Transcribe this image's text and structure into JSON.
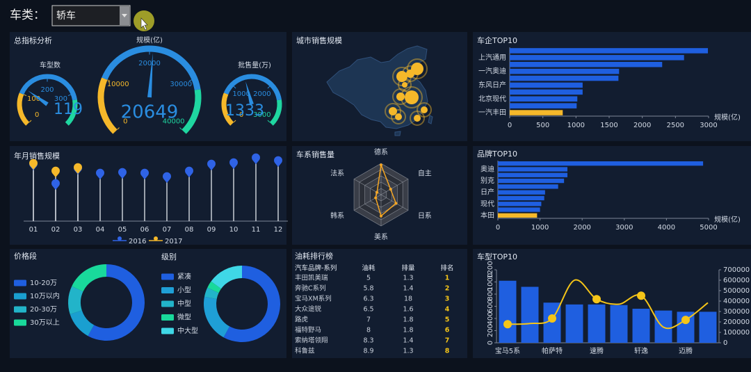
{
  "filter": {
    "label": "车类：",
    "value": "轿车"
  },
  "chart_data": [
    {
      "type": "gauge",
      "title": "总指标分析",
      "colors": [
        "#f5b82a",
        "#2a8de0",
        "#1fd6a0"
      ],
      "gauges": [
        {
          "name": "车型数",
          "value": 119,
          "lim": [
            0,
            400
          ],
          "ticks": [
            0,
            100,
            200,
            300
          ]
        },
        {
          "name": "规模(亿)",
          "value": 20649,
          "lim": [
            0,
            40000
          ],
          "ticks": [
            0,
            10000,
            20000,
            30000,
            40000
          ]
        },
        {
          "name": "批售量(万)",
          "value": 1333,
          "lim": [
            0,
            3000
          ],
          "ticks": [
            0,
            1000,
            2000,
            3000
          ]
        }
      ]
    },
    {
      "type": "map",
      "title": "城市销售规模"
    },
    {
      "type": "hbar",
      "title": "车企TOP10",
      "categories": [
        null,
        "上汽通用",
        null,
        "一汽奥迪",
        null,
        "东风日产",
        null,
        "北京现代",
        null,
        "一汽丰田"
      ],
      "values": [
        2990,
        2630,
        2300,
        1650,
        1640,
        1100,
        1100,
        1020,
        1010,
        800
      ],
      "colors": [
        "#1f5fe0",
        "#1f5fe0",
        "#1f5fe0",
        "#1f5fe0",
        "#1f5fe0",
        "#1f5fe0",
        "#1f5fe0",
        "#1f5fe0",
        "#1f5fe0",
        "#f5b82a"
      ],
      "xlim": [
        0,
        3000
      ],
      "xticks": [
        0,
        500,
        1000,
        1500,
        2000,
        2500,
        3000
      ],
      "xlabel": "规模(亿)"
    },
    {
      "type": "lollipop",
      "title": "年月销售规模",
      "categories": [
        "01",
        "02",
        "03",
        "04",
        "05",
        "06",
        "07",
        "08",
        "09",
        "10",
        "11",
        "12"
      ],
      "series": [
        {
          "name": "2016",
          "color": "#2f63e6",
          "values": [
            76,
            48,
            70,
            63,
            64,
            63,
            58,
            66,
            76,
            78,
            85,
            81
          ]
        },
        {
          "name": "2017",
          "color": "#f5b82a",
          "values": [
            77,
            66,
            71,
            null,
            null,
            null,
            null,
            null,
            null,
            null,
            null,
            null
          ]
        }
      ],
      "ylim": [
        0,
        100
      ]
    },
    {
      "type": "radar",
      "title": "车系销售量",
      "indicators": [
        "德系",
        "自主",
        "日系",
        "美系",
        "韩系",
        "法系"
      ],
      "rlim": [
        0,
        100
      ],
      "series": [
        {
          "color": "#f5a623",
          "values": [
            95,
            35,
            55,
            68,
            20,
            15
          ]
        }
      ]
    },
    {
      "type": "hbar",
      "title": "品牌TOP10",
      "categories": [
        null,
        "奥迪",
        null,
        "别克",
        null,
        "日产",
        null,
        "现代",
        null,
        "本田"
      ],
      "values": [
        4870,
        1650,
        1650,
        1570,
        1430,
        1120,
        1100,
        1030,
        1000,
        930
      ],
      "colors": [
        "#1f5fe0",
        "#1f5fe0",
        "#1f5fe0",
        "#1f5fe0",
        "#1f5fe0",
        "#1f5fe0",
        "#1f5fe0",
        "#1f5fe0",
        "#1f5fe0",
        "#f5b82a"
      ],
      "xlim": [
        0,
        5000
      ],
      "xticks": [
        0,
        1000,
        2000,
        3000,
        4000,
        5000
      ],
      "xlabel": "规模(亿)"
    },
    {
      "type": "donut",
      "title": "价格段",
      "categories": [
        "10-20万",
        "10万以内",
        "20-30万",
        "30万以上"
      ],
      "values": [
        58,
        12,
        12,
        18
      ],
      "colors": [
        "#1f5fe0",
        "#1a9fd0",
        "#22b4c9",
        "#19d99b"
      ]
    },
    {
      "type": "donut",
      "title": "级别",
      "categories": [
        "紧凑",
        "小型",
        "中型",
        "微型",
        "中大型"
      ],
      "values": [
        58,
        20,
        4,
        3,
        15
      ],
      "colors": [
        "#1f5fe0",
        "#1f9fd6",
        "#22b4c9",
        "#19d99b",
        "#3fd7e6"
      ]
    },
    {
      "type": "combo",
      "title": "车型TOP10",
      "categories": [
        "宝马5系",
        null,
        "帕萨特",
        null,
        "速腾",
        null,
        "轩逸",
        null,
        "迈腾",
        null
      ],
      "series": [
        {
          "type": "bar",
          "color": "#1f5fe0",
          "values": [
            1020,
            920,
            660,
            630,
            630,
            620,
            560,
            530,
            510,
            510
          ]
        },
        {
          "type": "line",
          "axis": "y2",
          "color": "#f5c518",
          "values": [
            178000,
            185000,
            233000,
            600000,
            418000,
            370000,
            452000,
            150000,
            219000,
            384000
          ]
        }
      ],
      "ylim": [
        0,
        1200
      ],
      "yticks": [
        0,
        200,
        400,
        600,
        800,
        1000,
        1200
      ],
      "y2lim": [
        0,
        700000
      ],
      "y2ticks": [
        0,
        100000,
        200000,
        300000,
        400000,
        500000,
        600000,
        700000
      ]
    }
  ],
  "table": {
    "title": "油耗排行榜",
    "columns": [
      "汽车品牌-系列",
      "油耗",
      "排量",
      "排名"
    ],
    "rows": [
      [
        "丰田凯美瑞",
        "5",
        "1.3",
        "1"
      ],
      [
        "奔驰C系列",
        "5.8",
        "1.4",
        "2"
      ],
      [
        "宝马XM系列",
        "6.3",
        "18",
        "3"
      ],
      [
        "大众途锐",
        "6.5",
        "1.6",
        "4"
      ],
      [
        "路虎",
        "7",
        "1.8",
        "5"
      ],
      [
        "福特野马",
        "8",
        "1.8",
        "6"
      ],
      [
        "索纳塔领翔",
        "8.3",
        "1.4",
        "7"
      ],
      [
        "科鲁兹",
        "8.9",
        "1.3",
        "8"
      ]
    ]
  }
}
